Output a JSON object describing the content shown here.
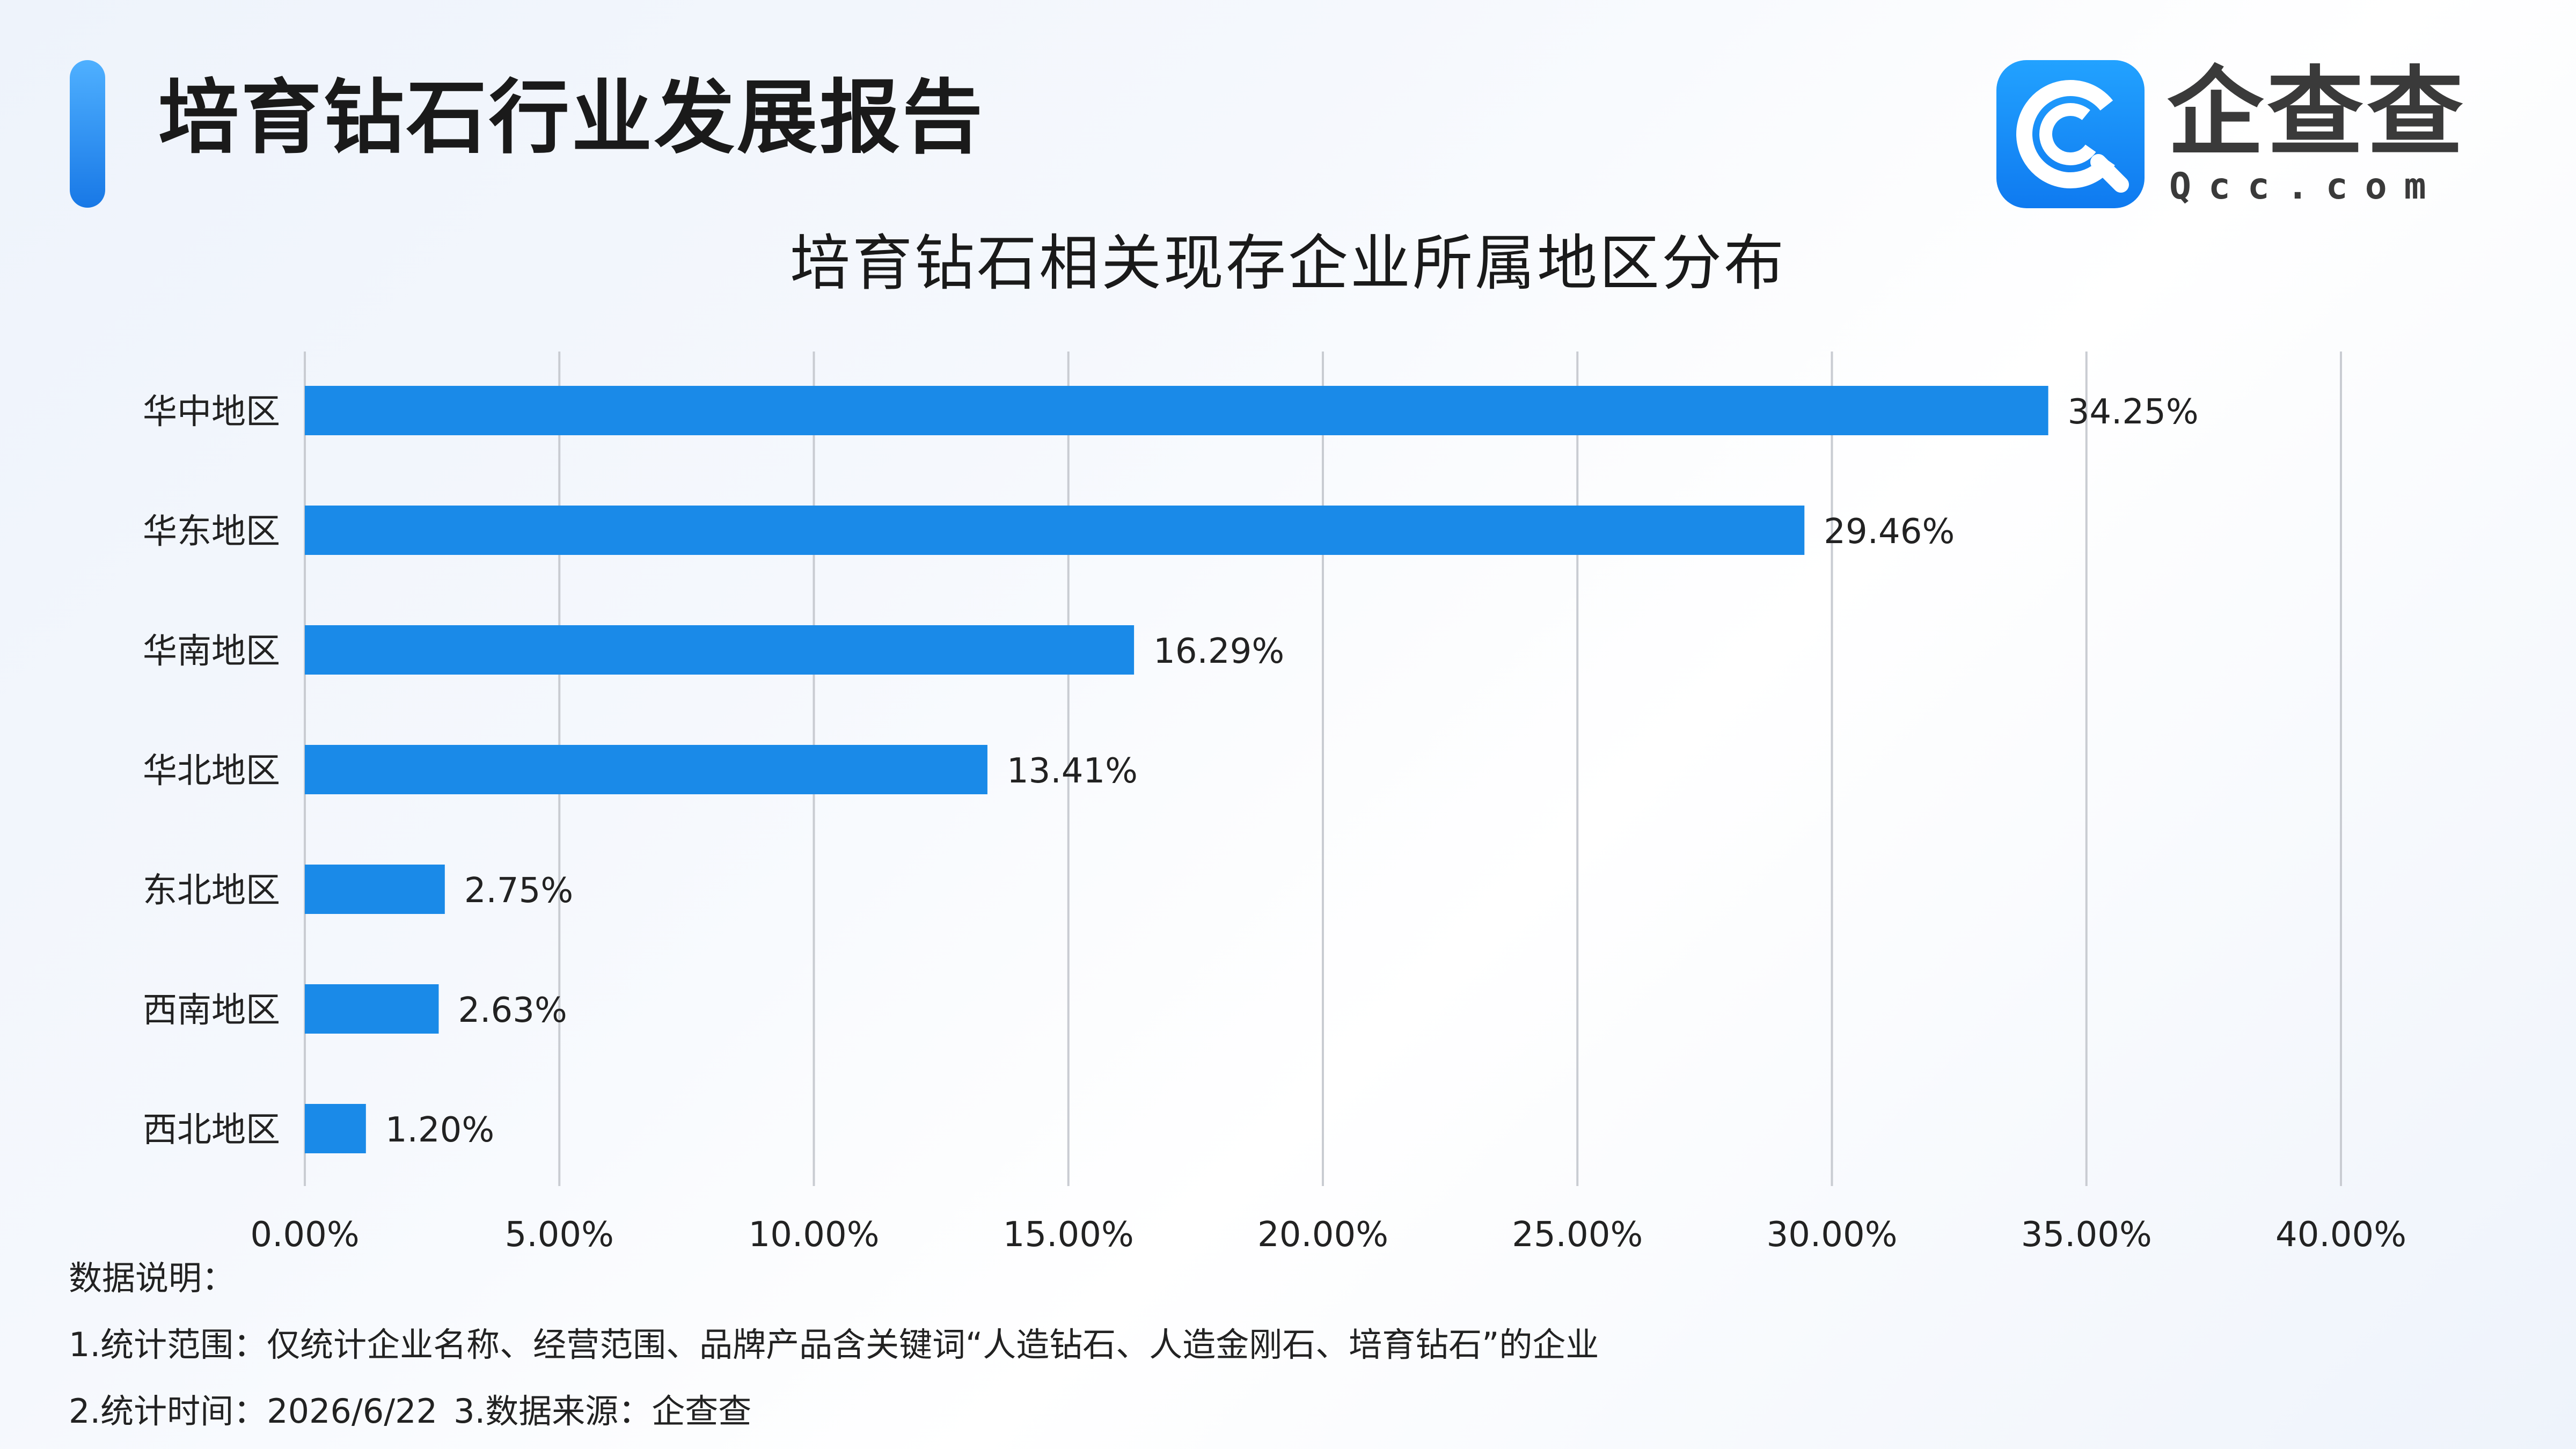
{
  "header": {
    "title": "培育钻石行业发展报告"
  },
  "logo": {
    "name_cn": "企查查",
    "name_en": "Qcc.com"
  },
  "chart_data": {
    "type": "bar",
    "orientation": "horizontal",
    "title": "培育钻石相关现存企业所属地区分布",
    "categories": [
      "华中地区",
      "华东地区",
      "华南地区",
      "华北地区",
      "东北地区",
      "西南地区",
      "西北地区"
    ],
    "values": [
      34.25,
      29.46,
      16.29,
      13.41,
      2.75,
      2.63,
      1.2
    ],
    "data_labels": [
      "34.25%",
      "29.46%",
      "16.29%",
      "13.41%",
      "2.75%",
      "2.63%",
      "1.20%"
    ],
    "x_ticks": [
      0,
      5,
      10,
      15,
      20,
      25,
      30,
      35,
      40
    ],
    "x_tick_labels": [
      "0.00%",
      "5.00%",
      "10.00%",
      "15.00%",
      "20.00%",
      "25.00%",
      "30.00%",
      "35.00%",
      "40.00%"
    ],
    "xlim": [
      0,
      40
    ],
    "xlabel": "",
    "ylabel": "",
    "grid": "vertical",
    "bar_color": "#1a8ae8",
    "grid_color": "#c9ccd2"
  },
  "notes": {
    "heading": "数据说明：",
    "line1": "1.统计范围：仅统计企业名称、经营范围、品牌产品含关键词“人造钻石、人造金刚石、培育钻石”的企业",
    "line2a": "2.统计时间：2026/6/22",
    "line2b": "3.数据来源：企查查"
  }
}
